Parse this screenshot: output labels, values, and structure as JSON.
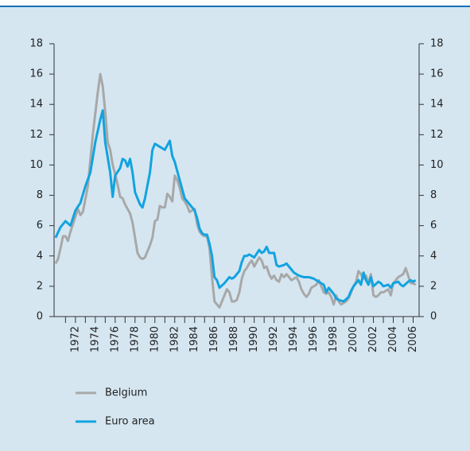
{
  "chart_data": {
    "type": "line",
    "xlim": [
      1969.85,
      2006.6
    ],
    "xticks": [
      {
        "value": 1972,
        "label": "1972"
      },
      {
        "value": 1974,
        "label": "1974"
      },
      {
        "value": 1976,
        "label": "1976"
      },
      {
        "value": 1978,
        "label": "1978"
      },
      {
        "value": 1980,
        "label": "1980"
      },
      {
        "value": 1982,
        "label": "1982"
      },
      {
        "value": 1984,
        "label": "1984"
      },
      {
        "value": 1986,
        "label": "1986"
      },
      {
        "value": 1988,
        "label": "1988"
      },
      {
        "value": 1990,
        "label": "1990"
      },
      {
        "value": 1992,
        "label": "1992"
      },
      {
        "value": 1994,
        "label": "1994"
      },
      {
        "value": 1996,
        "label": "1996"
      },
      {
        "value": 1998,
        "label": "1998"
      },
      {
        "value": 2000,
        "label": "2000"
      },
      {
        "value": 2002,
        "label": "2002"
      },
      {
        "value": 2004,
        "label": "2004"
      },
      {
        "value": 2006,
        "label": "2006"
      }
    ],
    "xminorticks": [
      1971,
      1973,
      1975,
      1977,
      1979,
      1981,
      1983,
      1985,
      1987,
      1989,
      1991,
      1993,
      1995,
      1997,
      1999,
      2001,
      2003,
      2005
    ],
    "ylim": [
      0,
      18
    ],
    "yticks": [
      0,
      2,
      4,
      6,
      8,
      10,
      12,
      14,
      16,
      18
    ],
    "y2lim": [
      0,
      18
    ],
    "y2ticks": [
      0,
      2,
      4,
      6,
      8,
      10,
      12,
      14,
      16,
      18
    ],
    "grid": false,
    "series": [
      {
        "name": "Belgium",
        "color": "#a8a8a8",
        "x": [
          1970,
          1970.25,
          1970.5,
          1970.75,
          1971,
          1971.25,
          1971.5,
          1972,
          1972.25,
          1972.5,
          1972.75,
          1973.25,
          1973.75,
          1974.25,
          1974.5,
          1974.75,
          1975,
          1975.25,
          1975.5,
          1975.75,
          1976,
          1976.25,
          1976.5,
          1976.75,
          1977,
          1977.5,
          1977.75,
          1978,
          1978.25,
          1978.5,
          1978.75,
          1979,
          1979.25,
          1979.5,
          1979.75,
          1980,
          1980.25,
          1980.5,
          1980.75,
          1981,
          1981.25,
          1981.5,
          1981.75,
          1982,
          1982.25,
          1982.5,
          1982.75,
          1983,
          1983.25,
          1983.5,
          1983.75,
          1984,
          1984.25,
          1984.5,
          1984.75,
          1985,
          1985.25,
          1985.5,
          1985.75,
          1986,
          1986.25,
          1986.5,
          1986.75,
          1987,
          1987.25,
          1987.5,
          1987.75,
          1988,
          1988.25,
          1988.5,
          1988.75,
          1989,
          1989.25,
          1989.5,
          1989.75,
          1990,
          1990.25,
          1990.5,
          1990.75,
          1991,
          1991.25,
          1991.5,
          1991.75,
          1992,
          1992.25,
          1992.5,
          1992.75,
          1993,
          1993.25,
          1993.5,
          1993.75,
          1994,
          1994.25,
          1994.5,
          1994.75,
          1995,
          1995.25,
          1995.5,
          1995.75,
          1996,
          1996.25,
          1996.5,
          1996.75,
          1997,
          1997.25,
          1997.5,
          1997.75,
          1998,
          1998.25,
          1998.5,
          1998.75,
          1999,
          1999.25,
          1999.5,
          1999.75,
          2000,
          2000.25,
          2000.5,
          2000.75,
          2001,
          2001.25,
          2001.5,
          2001.75,
          2002,
          2002.25,
          2002.5,
          2002.75,
          2003,
          2003.25,
          2003.5,
          2003.75,
          2004,
          2004.25,
          2004.5,
          2004.75,
          2005,
          2005.25,
          2005.5,
          2005.75,
          2006,
          2006.25
        ],
        "values": [
          3.5,
          3.8,
          4.5,
          5.3,
          5.3,
          5.0,
          5.6,
          6.6,
          7.1,
          6.7,
          6.9,
          8.6,
          12.0,
          14.8,
          16.0,
          15.2,
          13.5,
          11.5,
          11.0,
          10.0,
          9.4,
          8.7,
          7.9,
          7.8,
          7.4,
          6.8,
          6.2,
          5.2,
          4.2,
          3.9,
          3.8,
          3.9,
          4.3,
          4.7,
          5.2,
          6.3,
          6.4,
          7.3,
          7.2,
          7.2,
          8.1,
          7.9,
          7.6,
          9.3,
          9.0,
          8.5,
          7.8,
          7.6,
          7.3,
          6.9,
          7.0,
          7.1,
          6.1,
          5.6,
          5.4,
          5.3,
          5.3,
          4.5,
          2.6,
          1.0,
          0.8,
          0.6,
          1.0,
          1.4,
          1.8,
          1.6,
          1.0,
          1.0,
          1.1,
          1.6,
          2.5,
          3.0,
          3.2,
          3.5,
          3.7,
          3.3,
          3.6,
          3.9,
          3.7,
          3.2,
          3.3,
          2.8,
          2.5,
          2.7,
          2.4,
          2.3,
          2.8,
          2.6,
          2.8,
          2.6,
          2.4,
          2.5,
          2.6,
          2.3,
          1.8,
          1.5,
          1.3,
          1.5,
          1.9,
          2.0,
          2.1,
          2.4,
          2.0,
          1.6,
          1.5,
          1.6,
          1.3,
          0.8,
          1.4,
          1.0,
          0.8,
          0.9,
          1.0,
          1.2,
          1.6,
          2.0,
          2.3,
          3.0,
          2.8,
          2.5,
          2.7,
          2.2,
          2.8,
          1.4,
          1.3,
          1.4,
          1.6,
          1.6,
          1.7,
          1.8,
          1.4,
          2.2,
          2.4,
          2.6,
          2.7,
          2.8,
          3.2,
          2.7,
          2.2,
          2.2,
          2.1
        ]
      },
      {
        "name": "Euro area",
        "color": "#12a3e0",
        "x": [
          1970,
          1970.5,
          1971,
          1971.5,
          1972,
          1972.5,
          1973,
          1973.5,
          1974,
          1974.5,
          1974.75,
          1975,
          1975.5,
          1975.75,
          1976,
          1976.5,
          1976.75,
          1977,
          1977.25,
          1977.5,
          1977.75,
          1978,
          1978.5,
          1978.75,
          1979,
          1979.5,
          1979.75,
          1980,
          1980.5,
          1981,
          1981.25,
          1981.5,
          1981.75,
          1982,
          1982.5,
          1983,
          1983.5,
          1984,
          1984.25,
          1984.5,
          1984.75,
          1985,
          1985.25,
          1985.5,
          1985.75,
          1986,
          1986.25,
          1986.5,
          1987,
          1987.5,
          1987.75,
          1988,
          1988.5,
          1988.75,
          1989,
          1989.25,
          1989.5,
          1990,
          1990.5,
          1990.75,
          1991,
          1991.25,
          1991.5,
          1992,
          1992.25,
          1992.5,
          1993,
          1993.25,
          1993.5,
          1994,
          1994.5,
          1995,
          1995.5,
          1996,
          1996.5,
          1997,
          1997.25,
          1997.5,
          1997.75,
          1998,
          1998.25,
          1998.5,
          1999,
          1999.5,
          1999.75,
          2000,
          2000.5,
          2000.75,
          2001,
          2001.25,
          2001.5,
          2001.75,
          2002,
          2002.5,
          2002.75,
          2003,
          2003.5,
          2003.75,
          2004,
          2004.5,
          2004.75,
          2005,
          2005.5,
          2005.75,
          2006,
          2006.25
        ],
        "values": [
          5.2,
          5.9,
          6.3,
          6.0,
          7.0,
          7.5,
          8.6,
          9.5,
          11.5,
          13.0,
          13.6,
          11.5,
          9.5,
          7.9,
          9.3,
          9.8,
          10.4,
          10.3,
          9.9,
          10.4,
          9.5,
          8.2,
          7.4,
          7.2,
          7.8,
          9.5,
          11.0,
          11.4,
          11.2,
          11.0,
          11.3,
          11.6,
          10.6,
          10.2,
          9.0,
          7.8,
          7.4,
          7.0,
          6.5,
          5.8,
          5.5,
          5.4,
          5.4,
          4.8,
          4.0,
          2.6,
          2.4,
          1.9,
          2.2,
          2.6,
          2.5,
          2.6,
          3.0,
          3.6,
          4.0,
          4.0,
          4.1,
          3.9,
          4.4,
          4.2,
          4.3,
          4.6,
          4.2,
          4.2,
          3.4,
          3.3,
          3.4,
          3.5,
          3.3,
          2.9,
          2.7,
          2.6,
          2.6,
          2.5,
          2.3,
          2.1,
          1.6,
          1.9,
          1.7,
          1.5,
          1.2,
          1.1,
          1.0,
          1.3,
          1.7,
          2.0,
          2.4,
          2.1,
          2.9,
          2.4,
          2.1,
          2.6,
          2.0,
          2.3,
          2.2,
          2.0,
          2.1,
          1.9,
          2.2,
          2.3,
          2.1,
          2.0,
          2.3,
          2.4,
          2.3,
          2.4
        ]
      }
    ]
  }
}
